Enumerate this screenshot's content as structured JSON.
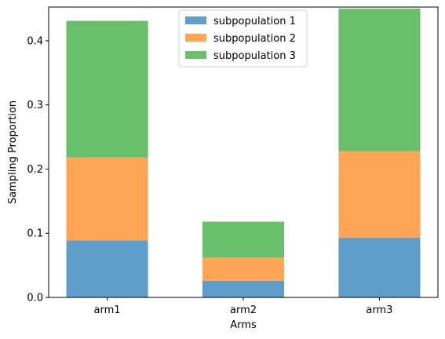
{
  "chart_data": {
    "type": "bar",
    "stacked": true,
    "categories": [
      "arm1",
      "arm2",
      "arm3"
    ],
    "series": [
      {
        "name": "subpopulation 1",
        "values": [
          0.089,
          0.026,
          0.093
        ],
        "color": "#5f9ecb"
      },
      {
        "name": "subpopulation 2",
        "values": [
          0.129,
          0.036,
          0.135
        ],
        "color": "#ffa555"
      },
      {
        "name": "subpopulation 3",
        "values": [
          0.213,
          0.056,
          0.222
        ],
        "color": "#6abf6a"
      }
    ],
    "xlabel": "Arms",
    "ylabel": "Sampling Proportion",
    "ylim": [
      0,
      0.4525
    ],
    "yticks": [
      0.0,
      0.1,
      0.2,
      0.3,
      0.4
    ],
    "ytick_labels": [
      "0.0",
      "0.1",
      "0.2",
      "0.3",
      "0.4"
    ],
    "grid": false,
    "legend_position": "top-center"
  }
}
